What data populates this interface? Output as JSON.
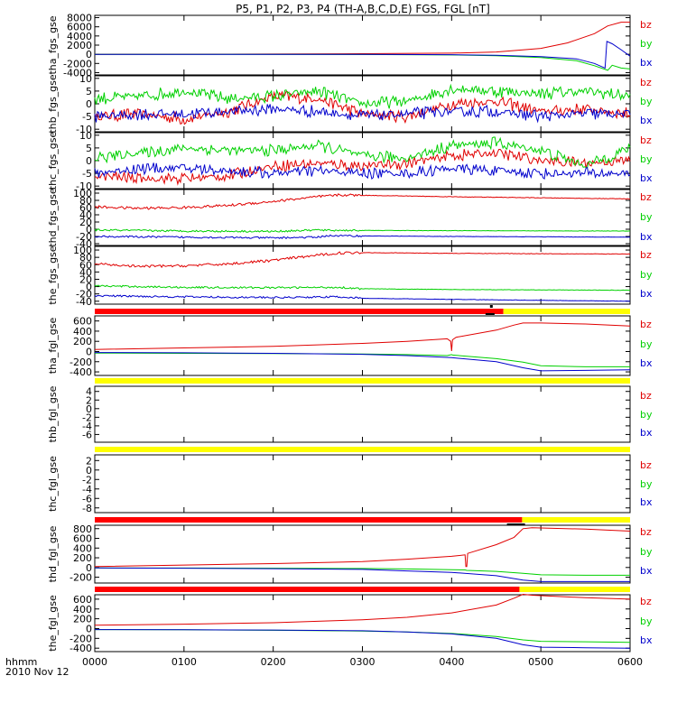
{
  "title": "P5, P1, P2, P3, P4 (TH-A,B,C,D,E) FGS, FGL [nT]",
  "time_axis": {
    "units_label": "hhmm",
    "date_label": "2010 Nov 12",
    "tick_labels": [
      "0000",
      "0100",
      "0200",
      "0300",
      "0400",
      "0500",
      "0600"
    ]
  },
  "legend_labels": [
    "bz",
    "by",
    "bx"
  ],
  "colors": {
    "bz": "#e00000",
    "by": "#00d000",
    "bx": "#0000cc",
    "bar_red": "#ff0000",
    "bar_yellow": "#ffff00",
    "black": "#000000"
  },
  "chart_data": [
    {
      "type": "line",
      "ylabel": "tha_fgs_gse",
      "ylim": [
        -4500,
        8500
      ],
      "yticks": [
        -4000,
        -2000,
        0,
        2000,
        4000,
        6000,
        8000
      ],
      "series": [
        {
          "name": "bz",
          "x": [
            0,
            150,
            300,
            400,
            450,
            500,
            530,
            560,
            575,
            590,
            600
          ],
          "y": [
            0,
            30,
            120,
            250,
            500,
            1300,
            2500,
            4500,
            6200,
            7000,
            7000
          ]
        },
        {
          "name": "by",
          "x": [
            0,
            300,
            400,
            450,
            500,
            540,
            560,
            575,
            580,
            590,
            600
          ],
          "y": [
            0,
            -50,
            -150,
            -300,
            -700,
            -1400,
            -2500,
            -3500,
            -2400,
            -3000,
            -3200
          ]
        },
        {
          "name": "bx",
          "x": [
            0,
            300,
            400,
            450,
            500,
            540,
            560,
            572,
            574,
            580,
            590,
            600
          ],
          "y": [
            0,
            -30,
            -80,
            -200,
            -500,
            -1000,
            -2000,
            -3000,
            2800,
            2300,
            1000,
            -400
          ]
        }
      ]
    },
    {
      "type": "line",
      "ylabel": "thb_fgs_gse",
      "ylim": [
        -11,
        11
      ],
      "yticks": [
        -10,
        -5,
        0,
        5,
        10
      ],
      "series": [
        {
          "name": "bz",
          "x": [
            0,
            50,
            100,
            150,
            200,
            250,
            300,
            350,
            400,
            450,
            500,
            550,
            600
          ],
          "y": [
            -5,
            -4,
            -6,
            -3,
            3,
            2,
            -4,
            -5,
            0,
            1,
            -3,
            -2,
            -4
          ]
        },
        {
          "name": "by",
          "x": [
            0,
            50,
            100,
            150,
            200,
            250,
            300,
            350,
            400,
            450,
            500,
            550,
            600
          ],
          "y": [
            2,
            3,
            5,
            2,
            3,
            5,
            0,
            1,
            6,
            5,
            4,
            5,
            3
          ]
        },
        {
          "name": "bx",
          "x": [
            0,
            50,
            100,
            150,
            200,
            250,
            300,
            350,
            400,
            450,
            500,
            550,
            600
          ],
          "y": [
            -5,
            -4,
            -4,
            -3,
            -2,
            -3,
            -5,
            -4,
            -3,
            -3,
            -5,
            -4,
            -4
          ]
        }
      ]
    },
    {
      "type": "line",
      "ylabel": "thc_fgs_gse",
      "ylim": [
        -11,
        11
      ],
      "yticks": [
        -10,
        -5,
        0,
        5,
        10
      ],
      "series": [
        {
          "name": "bz",
          "x": [
            0,
            50,
            100,
            150,
            200,
            250,
            300,
            350,
            400,
            450,
            500,
            550,
            600
          ],
          "y": [
            -6,
            -7,
            -7,
            -6,
            -2,
            -1,
            -2,
            -1,
            2,
            3,
            0,
            -1,
            0
          ]
        },
        {
          "name": "by",
          "x": [
            0,
            50,
            100,
            150,
            200,
            250,
            300,
            350,
            400,
            450,
            500,
            550,
            600
          ],
          "y": [
            1,
            3,
            5,
            4,
            4,
            6,
            2,
            1,
            6,
            7,
            4,
            -2,
            5
          ]
        },
        {
          "name": "bx",
          "x": [
            0,
            50,
            100,
            150,
            200,
            250,
            300,
            350,
            400,
            450,
            500,
            550,
            600
          ],
          "y": [
            -5,
            -3,
            -3,
            -4,
            -5,
            -4,
            -5,
            -5,
            -3,
            -4,
            -5,
            -5,
            -5
          ]
        }
      ]
    },
    {
      "type": "line",
      "ylabel": "thd_fgs_gse",
      "ylim": [
        -45,
        110
      ],
      "yticks": [
        -40,
        -20,
        0,
        20,
        40,
        60,
        80,
        100
      ],
      "series": [
        {
          "name": "bz",
          "x": [
            0,
            50,
            100,
            150,
            200,
            250,
            275,
            300,
            400,
            500,
            600
          ],
          "y": [
            62,
            58,
            60,
            66,
            77,
            90,
            95,
            94,
            90,
            87,
            84
          ]
        },
        {
          "name": "by",
          "x": [
            0,
            100,
            200,
            250,
            260,
            400,
            600
          ],
          "y": [
            -2,
            -5,
            -6,
            -2,
            -3,
            -4,
            -5
          ]
        },
        {
          "name": "bx",
          "x": [
            0,
            100,
            200,
            250,
            260,
            400,
            600
          ],
          "y": [
            -20,
            -22,
            -24,
            -22,
            -18,
            -20,
            -22
          ]
        }
      ]
    },
    {
      "type": "line",
      "ylabel": "the_fgs_gse",
      "ylim": [
        -48,
        110
      ],
      "yticks": [
        -40,
        -20,
        0,
        20,
        40,
        60,
        80,
        100
      ],
      "series": [
        {
          "name": "bz",
          "x": [
            0,
            50,
            100,
            150,
            200,
            250,
            275,
            300,
            400,
            500,
            600
          ],
          "y": [
            62,
            55,
            57,
            62,
            72,
            86,
            92,
            93,
            91,
            90,
            89
          ]
        },
        {
          "name": "by",
          "x": [
            0,
            100,
            200,
            275,
            300,
            400,
            600
          ],
          "y": [
            2,
            -2,
            -3,
            -2,
            -6,
            -8,
            -10
          ]
        },
        {
          "name": "bx",
          "x": [
            0,
            100,
            200,
            275,
            300,
            400,
            600
          ],
          "y": [
            -25,
            -28,
            -30,
            -28,
            -32,
            -35,
            -40
          ]
        }
      ]
    },
    {
      "type": "line",
      "ylabel": "tha_fgl_gse",
      "ylim": [
        -470,
        700
      ],
      "yticks": [
        -400,
        -200,
        0,
        200,
        400,
        600
      ],
      "series": [
        {
          "name": "bz",
          "x": [
            0,
            100,
            200,
            300,
            350,
            395,
            399,
            400,
            401,
            405,
            450,
            470,
            480,
            500,
            550,
            600
          ],
          "y": [
            40,
            70,
            100,
            160,
            200,
            250,
            200,
            10,
            230,
            280,
            420,
            520,
            560,
            560,
            540,
            500
          ]
        },
        {
          "name": "by",
          "x": [
            0,
            100,
            200,
            300,
            350,
            395,
            400,
            401,
            450,
            480,
            500,
            550,
            600
          ],
          "y": [
            -30,
            -35,
            -40,
            -50,
            -60,
            -80,
            -60,
            -70,
            -140,
            -210,
            -280,
            -300,
            -300
          ]
        },
        {
          "name": "bx",
          "x": [
            0,
            100,
            200,
            300,
            350,
            400,
            450,
            480,
            500,
            550,
            600
          ],
          "y": [
            -20,
            -25,
            -35,
            -55,
            -80,
            -120,
            -200,
            -320,
            -380,
            -370,
            -360
          ]
        }
      ]
    },
    {
      "type": "line",
      "ylabel": "thb_fgl_gse",
      "ylim": [
        -7.8,
        5.2
      ],
      "yticks": [
        -6,
        -4,
        -2,
        0,
        2,
        4
      ],
      "series": []
    },
    {
      "type": "line",
      "ylabel": "thc_fgl_gse",
      "ylim": [
        -9,
        3.2
      ],
      "yticks": [
        -8,
        -6,
        -4,
        -2,
        0,
        2
      ],
      "series": []
    },
    {
      "type": "line",
      "ylabel": "thd_fgl_gse",
      "ylim": [
        -320,
        870
      ],
      "yticks": [
        -200,
        0,
        200,
        400,
        600,
        800
      ],
      "series": [
        {
          "name": "bz",
          "x": [
            0,
            100,
            200,
            300,
            350,
            400,
            415,
            416,
            417,
            418,
            450,
            470,
            480,
            490,
            550,
            600
          ],
          "y": [
            20,
            50,
            80,
            120,
            170,
            230,
            260,
            20,
            20,
            290,
            470,
            620,
            800,
            820,
            790,
            750
          ]
        },
        {
          "name": "by",
          "x": [
            0,
            100,
            200,
            300,
            350,
            400,
            415,
            417,
            450,
            480,
            500,
            550,
            600
          ],
          "y": [
            -10,
            -12,
            -15,
            -20,
            -30,
            -45,
            -50,
            -60,
            -80,
            -120,
            -150,
            -160,
            -160
          ]
        },
        {
          "name": "bx",
          "x": [
            0,
            100,
            200,
            300,
            350,
            400,
            450,
            480,
            500,
            550,
            600
          ],
          "y": [
            -10,
            -15,
            -25,
            -40,
            -70,
            -100,
            -170,
            -260,
            -290,
            -290,
            -290
          ]
        }
      ]
    },
    {
      "type": "line",
      "ylabel": "the_fgl_gse",
      "ylim": [
        -470,
        690
      ],
      "yticks": [
        -400,
        -200,
        0,
        200,
        400,
        600
      ],
      "series": [
        {
          "name": "bz",
          "x": [
            0,
            100,
            200,
            300,
            350,
            400,
            450,
            470,
            480,
            490,
            550,
            600
          ],
          "y": [
            70,
            90,
            120,
            180,
            230,
            320,
            480,
            620,
            700,
            680,
            630,
            600
          ]
        },
        {
          "name": "by",
          "x": [
            0,
            100,
            200,
            300,
            350,
            400,
            450,
            480,
            500,
            550,
            600
          ],
          "y": [
            -20,
            -25,
            -35,
            -50,
            -70,
            -100,
            -160,
            -230,
            -260,
            -270,
            -280
          ]
        },
        {
          "name": "bx",
          "x": [
            0,
            100,
            200,
            300,
            350,
            400,
            450,
            480,
            500,
            550,
            600
          ],
          "y": [
            -20,
            -25,
            -30,
            -45,
            -70,
            -110,
            -200,
            -330,
            -380,
            -390,
            -400
          ]
        }
      ]
    }
  ]
}
